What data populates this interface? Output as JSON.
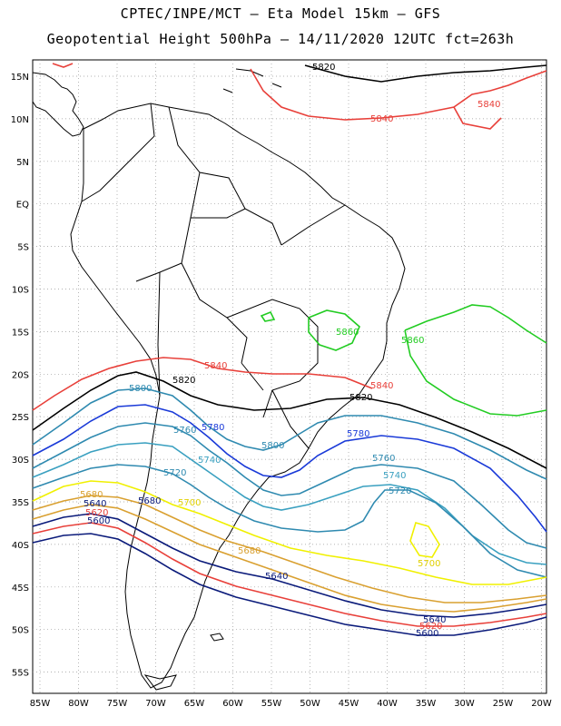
{
  "title_line1": "CPTEC/INPE/MCT –  Eta Model 15km – GFS",
  "title_line2": "Geopotential Height 500hPa – 14/11/2020 12UTC fct=263h",
  "lat_labels": [
    "15N",
    "10N",
    "5N",
    "EQ",
    "5S",
    "10S",
    "15S",
    "20S",
    "25S",
    "30S",
    "35S",
    "40S",
    "45S",
    "50S",
    "55S"
  ],
  "lon_labels": [
    "85W",
    "80W",
    "75W",
    "70W",
    "65W",
    "60W",
    "55W",
    "50W",
    "45W",
    "40W",
    "35W",
    "30W",
    "25W",
    "20W"
  ],
  "contour_labels": {
    "c5820_n": "5820",
    "c5840_ne": "5840",
    "c5840_n": "5840",
    "c5860_brz": "5860",
    "c5860_atl": "5860",
    "c5840_s": "5840",
    "c5840_e": "5840",
    "c5820_s": "5820",
    "c5820_e": "5820",
    "c5800_w": "5800",
    "c5800_m": "5800",
    "c5780_w": "5780",
    "c5780_e": "5780",
    "c5760_w": "5760",
    "c5760_e": "5760",
    "c5740_w": "5740",
    "c5740_e": "5740",
    "c5720_w": "5720",
    "c5720_e": "5720",
    "c5700_w": "5700",
    "c5700_e": "5700",
    "c5680_w": "5680",
    "c5680_m": "5680",
    "c5680_e": "5680",
    "c5660_w": "5660",
    "c5640_w": "5640",
    "c5640_m": "5640",
    "c5640_e": "5640",
    "c5620_w": "5620",
    "c5620_e": "5620",
    "c5600_w": "5600",
    "c5600_e": "5600"
  },
  "colors": {
    "5860": "#22cc22",
    "5840": "#e8403a",
    "5820": "#000000",
    "5800": "#2f8ab0",
    "5780": "#1a3ad8",
    "5760": "#2f8ab0",
    "5740": "#3aa0c0",
    "5720": "#2f8ab0",
    "5700": "#f0f000",
    "5680": "#d9a030",
    "5660": "#d9a030",
    "5640": "#0a1a7a",
    "5620": "#e8403a",
    "5600": "#0a1a7a"
  }
}
